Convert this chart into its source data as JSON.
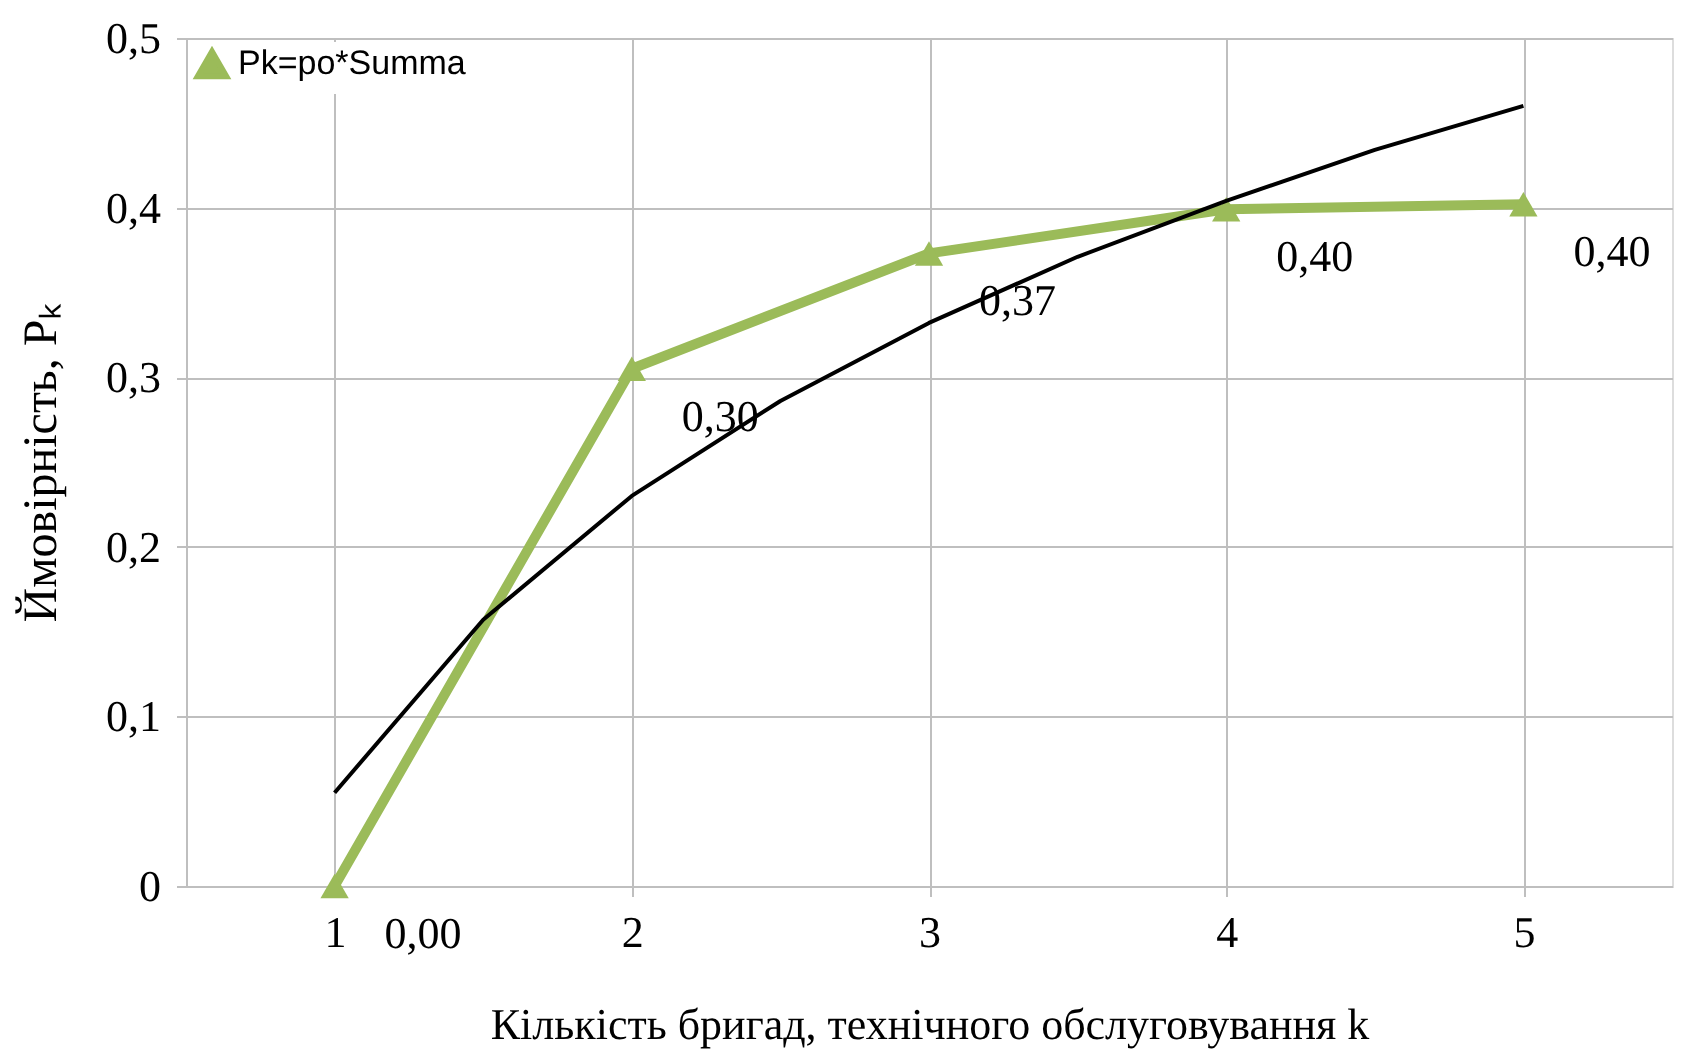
{
  "chart_data": {
    "type": "line",
    "xlabel": "Кількість бригад, технічного обслуговування k",
    "ylabel": "Ймовірність, Pₖ",
    "xlim": [
      0.5,
      5.5
    ],
    "xticks": [
      1,
      2,
      3,
      4,
      5
    ],
    "ylim": [
      0,
      0.5
    ],
    "yticks": [
      0,
      {
        "value": 0.1,
        "label": "0,1"
      },
      {
        "value": 0.2,
        "label": "0,2"
      },
      {
        "value": 0.3,
        "label": "0,3"
      },
      {
        "value": 0.4,
        "label": "0,4"
      },
      {
        "value": 0.5,
        "label": "0,5"
      }
    ],
    "grid": true,
    "legend": "top left",
    "series": [
      {
        "name": "Pk=po*Summa",
        "color": "#9bbb59",
        "marker": "triangle",
        "x": [
          1,
          2,
          3,
          4,
          5
        ],
        "values": [
          0,
          0.305,
          0.373,
          0.399,
          0.402
        ],
        "value_labels": [
          "0,00",
          "0,30",
          "0,37",
          "0,40",
          "0,40"
        ]
      },
      {
        "type": "line",
        "color": "#000000",
        "marker": "none",
        "x": [
          1,
          1.5,
          2,
          2.5,
          3,
          3.5,
          4,
          4.5,
          5
        ],
        "values": [
          0.055,
          0.157,
          0.23,
          0.286,
          0.332,
          0.371,
          0.404,
          0.434,
          0.46
        ]
      }
    ]
  }
}
